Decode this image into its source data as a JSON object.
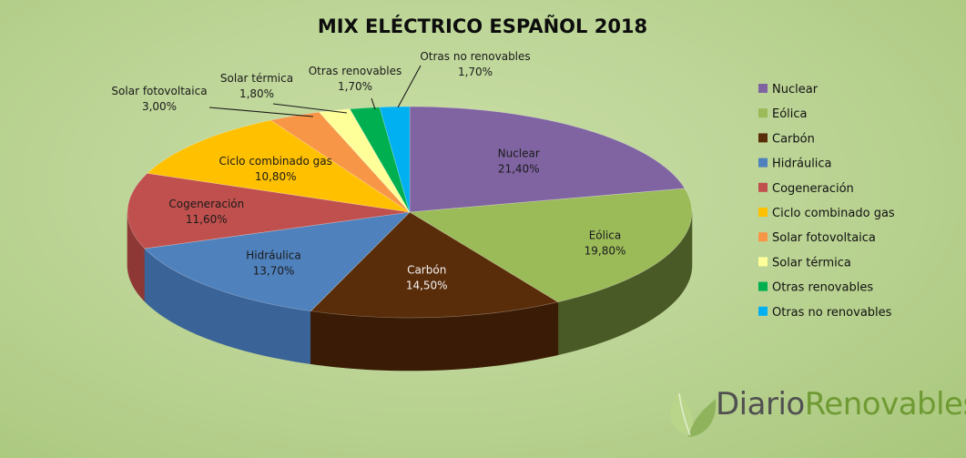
{
  "chart_data": {
    "type": "pie",
    "title": "MIX ELÉCTRICO ESPAÑOL 2018",
    "legend_position": "right",
    "series": [
      {
        "name": "Nuclear",
        "value": 21.4,
        "label": "21,40%",
        "color": "#8064a2",
        "side": "#5b4776"
      },
      {
        "name": "Eólica",
        "value": 19.8,
        "label": "19,80%",
        "color": "#9bbb59",
        "side": "#495a26"
      },
      {
        "name": "Carbón",
        "value": 14.5,
        "label": "14,50%",
        "color": "#5a2d0a",
        "side": "#3a1c06"
      },
      {
        "name": "Hidráulica",
        "value": 13.7,
        "label": "13,70%",
        "color": "#4f81bd",
        "side": "#3a6398"
      },
      {
        "name": "Cogeneración",
        "value": 11.6,
        "label": "11,60%",
        "color": "#c0504d",
        "side": "#8e3835"
      },
      {
        "name": "Ciclo combinado gas",
        "value": 10.8,
        "label": "10,80%",
        "color": "#ffc000",
        "side": "#b88a00"
      },
      {
        "name": "Solar fotovoltaica",
        "value": 3.0,
        "label": "3,00%",
        "color": "#f79646",
        "side": "#b56b2f"
      },
      {
        "name": "Solar térmica",
        "value": 1.8,
        "label": "1,80%",
        "color": "#ffff99",
        "side": "#bdbd6c"
      },
      {
        "name": "Otras renovables",
        "value": 1.7,
        "label": "1,70%",
        "color": "#00b050",
        "side": "#007a37"
      },
      {
        "name": "Otras no renovables",
        "value": 1.7,
        "label": "1,70%",
        "color": "#00b0f0",
        "side": "#0079a8"
      }
    ]
  },
  "brand": {
    "part1": "Diario",
    "part2": "Renovables",
    "leaf_color_light": "#b9d58a",
    "leaf_color_dark": "#8fb35c"
  }
}
